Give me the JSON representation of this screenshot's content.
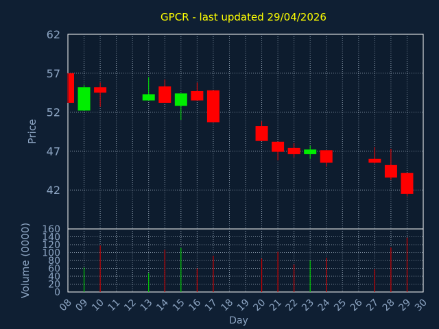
{
  "colors": {
    "background": "#0f1f33",
    "plot_background": "#0d1c2e",
    "title": "#ffff00",
    "axis_text": "#8ea6c4",
    "grid": "#8a9aab",
    "up": "#00ee00",
    "down": "#ff0000",
    "volume_up": "#00cc00",
    "volume_down": "#cc0000"
  },
  "chart_data": [
    {
      "type": "candlestick",
      "title": "GPCR - last updated 29/04/2026",
      "ylabel": "Price",
      "ylim": [
        37,
        62
      ],
      "yticks": [
        42,
        47,
        52,
        57,
        62
      ],
      "xlim": [
        8,
        30
      ],
      "grid": true,
      "days": [
        {
          "day": 8,
          "open": 57.0,
          "high": 57.0,
          "low": 53.2,
          "close": 53.2
        },
        {
          "day": 9,
          "open": 52.2,
          "high": 55.5,
          "low": 52.2,
          "close": 55.2
        },
        {
          "day": 10,
          "open": 55.2,
          "high": 55.8,
          "low": 52.7,
          "close": 54.5
        },
        {
          "day": 13,
          "open": 53.5,
          "high": 56.5,
          "low": 53.5,
          "close": 54.3
        },
        {
          "day": 14,
          "open": 55.3,
          "high": 56.2,
          "low": 53.2,
          "close": 53.2
        },
        {
          "day": 15,
          "open": 52.8,
          "high": 54.4,
          "low": 51.0,
          "close": 54.4
        },
        {
          "day": 16,
          "open": 54.7,
          "high": 55.8,
          "low": 53.5,
          "close": 53.5
        },
        {
          "day": 17,
          "open": 54.8,
          "high": 54.8,
          "low": 50.7,
          "close": 50.7
        },
        {
          "day": 20,
          "open": 50.2,
          "high": 50.8,
          "low": 48.3,
          "close": 48.3
        },
        {
          "day": 21,
          "open": 48.2,
          "high": 48.2,
          "low": 45.8,
          "close": 46.9
        },
        {
          "day": 22,
          "open": 47.4,
          "high": 48.0,
          "low": 46.2,
          "close": 46.6
        },
        {
          "day": 23,
          "open": 46.6,
          "high": 47.7,
          "low": 46.0,
          "close": 47.2
        },
        {
          "day": 24,
          "open": 47.1,
          "high": 47.1,
          "low": 45.0,
          "close": 45.5
        },
        {
          "day": 27,
          "open": 46.0,
          "high": 47.5,
          "low": 45.4,
          "close": 45.5
        },
        {
          "day": 28,
          "open": 45.2,
          "high": 47.3,
          "low": 43.3,
          "close": 43.6
        },
        {
          "day": 29,
          "open": 44.2,
          "high": 44.2,
          "low": 41.2,
          "close": 41.5
        }
      ]
    },
    {
      "type": "bar",
      "ylabel": "Volume (0000)",
      "xlabel": "Day",
      "ylim": [
        0,
        160
      ],
      "yticks": [
        0,
        20,
        40,
        60,
        80,
        100,
        120,
        140,
        160
      ],
      "xlim": [
        8,
        30
      ],
      "xticks": [
        "08",
        "09",
        "10",
        "11",
        "12",
        "13",
        "14",
        "15",
        "16",
        "17",
        "18",
        "19",
        "20",
        "21",
        "22",
        "23",
        "24",
        "25",
        "26",
        "27",
        "28",
        "29",
        "30"
      ],
      "grid": true,
      "bars": [
        {
          "day": 9,
          "value": 62,
          "direction": "up"
        },
        {
          "day": 10,
          "value": 118,
          "direction": "down"
        },
        {
          "day": 13,
          "value": 48,
          "direction": "up"
        },
        {
          "day": 14,
          "value": 107,
          "direction": "down"
        },
        {
          "day": 15,
          "value": 112,
          "direction": "up"
        },
        {
          "day": 16,
          "value": 60,
          "direction": "down"
        },
        {
          "day": 17,
          "value": 92,
          "direction": "down"
        },
        {
          "day": 20,
          "value": 85,
          "direction": "down"
        },
        {
          "day": 21,
          "value": 102,
          "direction": "down"
        },
        {
          "day": 22,
          "value": 70,
          "direction": "down"
        },
        {
          "day": 23,
          "value": 80,
          "direction": "up"
        },
        {
          "day": 24,
          "value": 87,
          "direction": "down"
        },
        {
          "day": 27,
          "value": 58,
          "direction": "down"
        },
        {
          "day": 28,
          "value": 113,
          "direction": "down"
        },
        {
          "day": 29,
          "value": 138,
          "direction": "down"
        }
      ]
    }
  ]
}
